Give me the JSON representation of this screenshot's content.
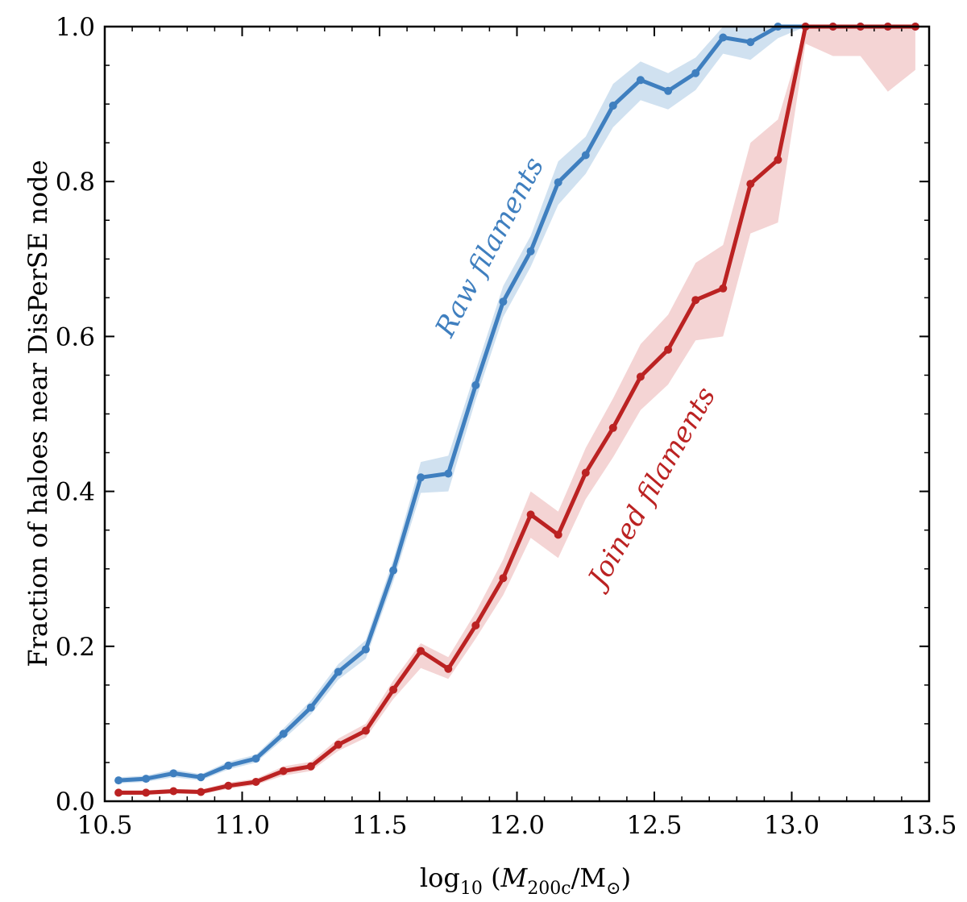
{
  "chart_data": {
    "type": "line",
    "title": "",
    "xlabel": "log10 (M200c/M⊙)",
    "xlabel_parts": {
      "pre": "log",
      "pre_sub": "10",
      "open": " (",
      "var": "M",
      "var_sub": "200c",
      "mid": "/M",
      "sym": "⊙",
      "close": ")"
    },
    "ylabel": "Fraction of haloes near DisPerSE node",
    "xlim": [
      10.5,
      13.5
    ],
    "ylim": [
      0.0,
      1.0
    ],
    "xticks": [
      "10.5",
      "11.0",
      "11.5",
      "12.0",
      "12.5",
      "13.0",
      "13.5"
    ],
    "yticks": [
      "0.0",
      "0.2",
      "0.4",
      "0.6",
      "0.8",
      "1.0"
    ],
    "x": [
      10.55,
      10.65,
      10.75,
      10.85,
      10.95,
      11.05,
      11.15,
      11.25,
      11.35,
      11.45,
      11.55,
      11.65,
      11.75,
      11.85,
      11.95,
      12.05,
      12.15,
      12.25,
      12.35,
      12.45,
      12.55,
      12.65,
      12.75,
      12.85,
      12.95,
      13.05,
      13.15,
      13.25,
      13.35,
      13.45
    ],
    "series": [
      {
        "name": "Raw filaments",
        "color": "#3f7fbf",
        "band_color": "#aac8e4",
        "values": [
          0.027,
          0.029,
          0.036,
          0.031,
          0.046,
          0.055,
          0.087,
          0.121,
          0.167,
          0.196,
          0.298,
          0.418,
          0.423,
          0.537,
          0.645,
          0.71,
          0.799,
          0.834,
          0.898,
          0.931,
          0.917,
          0.94,
          0.986,
          0.98,
          1.0,
          1.0,
          1.0,
          1.0,
          1.0,
          1.0
        ],
        "lower": [
          0.023,
          0.025,
          0.031,
          0.027,
          0.041,
          0.05,
          0.08,
          0.112,
          0.157,
          0.184,
          0.284,
          0.398,
          0.4,
          0.518,
          0.625,
          0.69,
          0.77,
          0.81,
          0.87,
          0.905,
          0.893,
          0.918,
          0.965,
          0.957,
          0.985,
          1.0,
          1.0,
          1.0,
          1.0,
          1.0
        ],
        "upper": [
          0.031,
          0.033,
          0.041,
          0.035,
          0.051,
          0.06,
          0.094,
          0.13,
          0.177,
          0.208,
          0.312,
          0.438,
          0.446,
          0.556,
          0.665,
          0.73,
          0.826,
          0.858,
          0.926,
          0.955,
          0.94,
          0.96,
          1.0,
          1.0,
          1.0,
          1.0,
          1.0,
          1.0,
          1.0,
          1.0
        ]
      },
      {
        "name": "Joined filaments",
        "color": "#bb2222",
        "band_color": "#e9a9a9",
        "values": [
          0.011,
          0.011,
          0.013,
          0.012,
          0.02,
          0.025,
          0.039,
          0.045,
          0.073,
          0.091,
          0.144,
          0.194,
          0.171,
          0.227,
          0.288,
          0.37,
          0.344,
          0.424,
          0.482,
          0.548,
          0.583,
          0.647,
          0.662,
          0.797,
          0.828,
          1.0,
          1.0,
          1.0,
          1.0,
          1.0
        ],
        "lower": [
          0.008,
          0.008,
          0.01,
          0.009,
          0.016,
          0.021,
          0.033,
          0.039,
          0.065,
          0.082,
          0.132,
          0.172,
          0.158,
          0.21,
          0.266,
          0.34,
          0.314,
          0.39,
          0.444,
          0.505,
          0.538,
          0.595,
          0.6,
          0.733,
          0.747,
          0.978,
          0.962,
          0.962,
          0.916,
          0.944
        ],
        "upper": [
          0.014,
          0.014,
          0.016,
          0.015,
          0.024,
          0.029,
          0.045,
          0.051,
          0.081,
          0.1,
          0.156,
          0.204,
          0.186,
          0.244,
          0.312,
          0.4,
          0.374,
          0.456,
          0.52,
          0.59,
          0.628,
          0.695,
          0.718,
          0.85,
          0.88,
          1.0,
          1.0,
          1.0,
          1.0,
          1.0
        ]
      }
    ],
    "annotations": [
      {
        "text": "Raw filaments",
        "series": 0,
        "x": 11.93,
        "y": 0.71,
        "angle": -62
      },
      {
        "text": "Joined filaments",
        "series": 1,
        "x": 12.52,
        "y": 0.4,
        "angle": -60
      }
    ]
  }
}
